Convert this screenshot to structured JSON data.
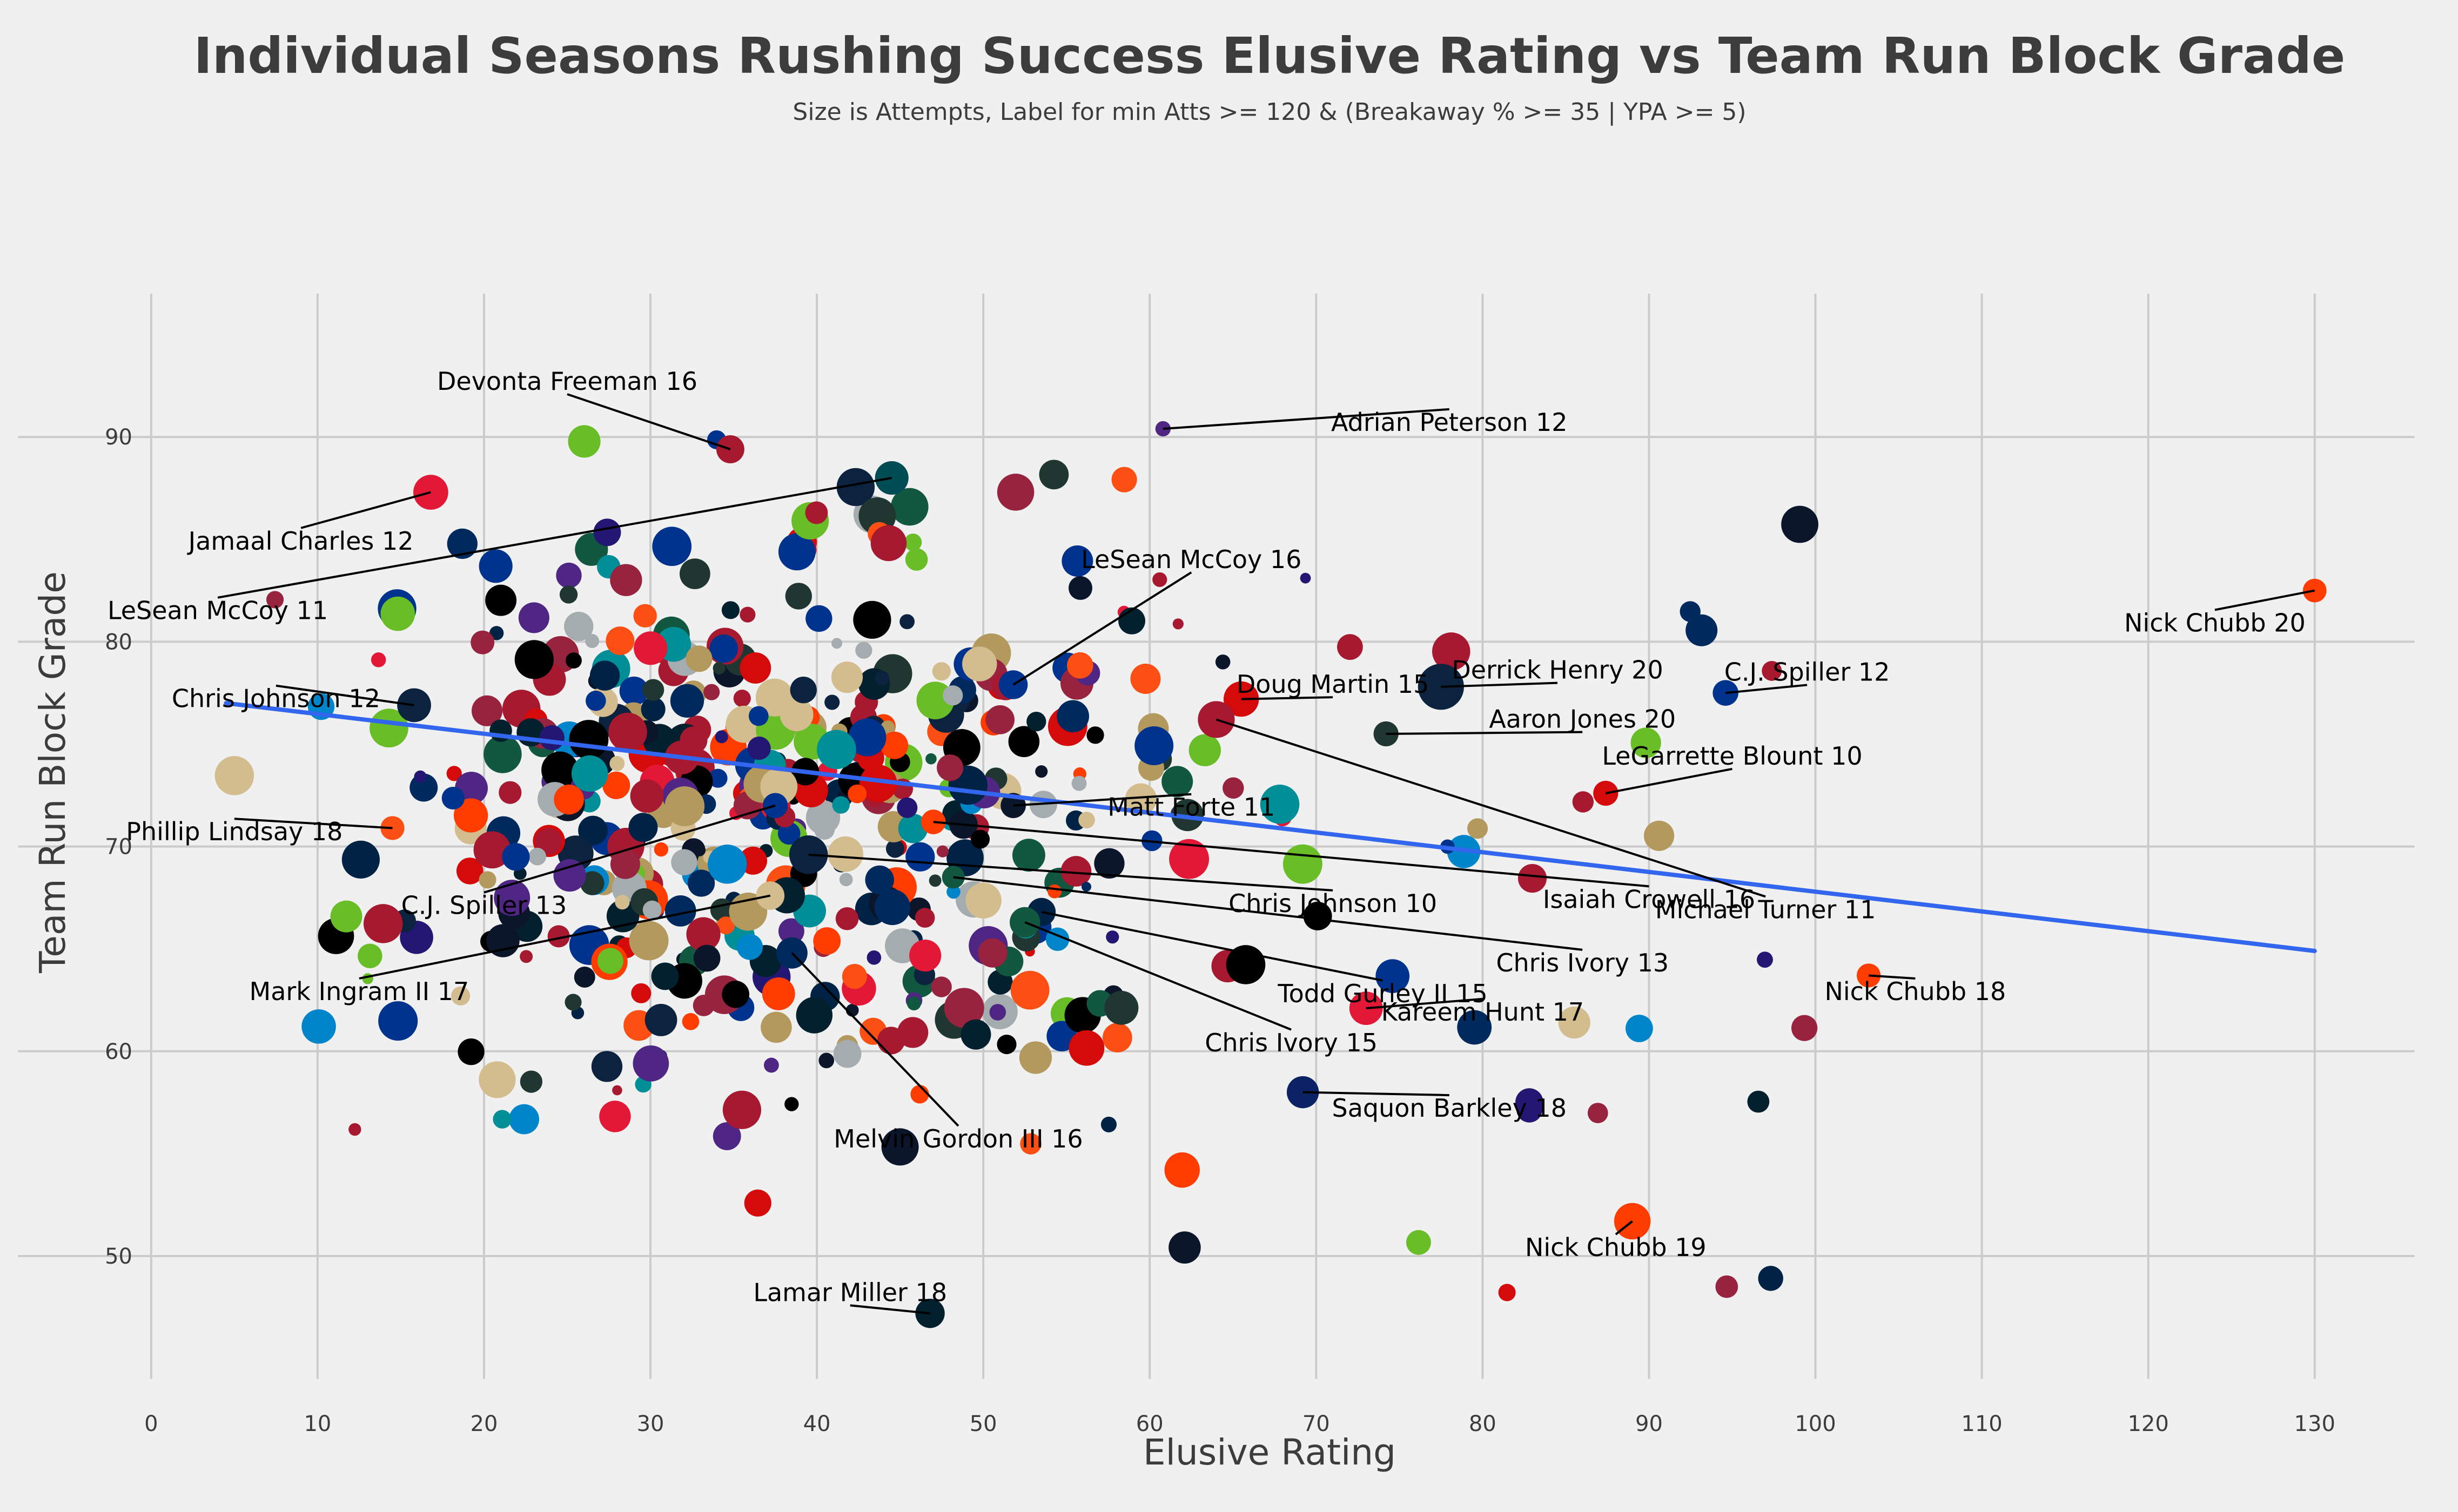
{
  "chart_data": {
    "type": "scatter",
    "title": "Individual Seasons Rushing Success Elusive Rating vs Team Run Block Grade",
    "subtitle": "Size is Attempts, Label for min Atts >= 120 & (Breakaway % >= 35 | YPA >= 5)",
    "xlabel": "Elusive Rating",
    "ylabel": "Team Run Block Grade",
    "xlim": [
      -8,
      136
    ],
    "ylim": [
      44,
      97
    ],
    "xticks": [
      0,
      10,
      20,
      30,
      40,
      50,
      60,
      70,
      80,
      90,
      100,
      110,
      120,
      130
    ],
    "yticks": [
      50,
      60,
      70,
      80,
      90
    ],
    "grid": true,
    "background": "#f0f0f0",
    "trendline": {
      "x": [
        4.5,
        130
      ],
      "y": [
        77.0,
        64.9
      ],
      "color": "#3366ee"
    },
    "labeled_points": [
      {
        "label": "Devonta Freeman 16",
        "x": 34.8,
        "y": 89.4,
        "atts": 227,
        "color": "#a6192e"
      },
      {
        "label": "Adrian Peterson 12",
        "x": 60.8,
        "y": 90.4,
        "atts": 120,
        "color": "#4f2683"
      },
      {
        "label": "Jamaal Charles 12",
        "x": 16.8,
        "y": 87.3,
        "atts": 285,
        "color": "#e31837"
      },
      {
        "label": "LeSean McCoy 16",
        "x": 51.8,
        "y": 77.9,
        "atts": 234,
        "color": "#00338d"
      },
      {
        "label": "LeSean McCoy 11",
        "x": 44.5,
        "y": 88.0,
        "atts": 273,
        "color": "#004c54"
      },
      {
        "label": "Nick Chubb 20",
        "x": 130.0,
        "y": 82.5,
        "atts": 190,
        "color": "#ff3c00"
      },
      {
        "label": "Doug Martin 15",
        "x": 65.5,
        "y": 77.2,
        "atts": 288,
        "color": "#d50a0a"
      },
      {
        "label": "Derrick Henry 20",
        "x": 77.5,
        "y": 77.8,
        "atts": 378,
        "color": "#0c2340"
      },
      {
        "label": "C.J. Spiller 12",
        "x": 94.6,
        "y": 77.5,
        "atts": 207,
        "color": "#00338d"
      },
      {
        "label": "Aaron Jones 20",
        "x": 74.2,
        "y": 75.5,
        "atts": 201,
        "color": "#203731"
      },
      {
        "label": "Chris Johnson 12",
        "x": 15.8,
        "y": 76.9,
        "atts": 276,
        "color": "#0c2340"
      },
      {
        "label": "LeGarrette Blount 10",
        "x": 87.4,
        "y": 72.6,
        "atts": 201,
        "color": "#d50a0a"
      },
      {
        "label": "Matt Forte 11",
        "x": 51.8,
        "y": 72.0,
        "atts": 203,
        "color": "#0b162a"
      },
      {
        "label": "Phillip Lindsay 18",
        "x": 14.5,
        "y": 70.9,
        "atts": 192,
        "color": "#fb4f14"
      },
      {
        "label": "Isaiah Crowell 16",
        "x": 47.0,
        "y": 71.2,
        "atts": 198,
        "color": "#ff3c00"
      },
      {
        "label": "Michael Turner 11",
        "x": 64.0,
        "y": 76.2,
        "atts": 301,
        "color": "#a71930"
      },
      {
        "label": "C.J. Spiller 13",
        "x": 37.5,
        "y": 72.0,
        "atts": 202,
        "color": "#00338d"
      },
      {
        "label": "Chris Johnson 10",
        "x": 39.5,
        "y": 69.6,
        "atts": 316,
        "color": "#0c2340"
      },
      {
        "label": "Chris Ivory 13",
        "x": 48.2,
        "y": 68.5,
        "atts": 182,
        "color": "#125740"
      },
      {
        "label": "Mark Ingram II 17",
        "x": 37.2,
        "y": 67.6,
        "atts": 230,
        "color": "#d3bc8d"
      },
      {
        "label": "Todd Gurley II 15",
        "x": 53.5,
        "y": 66.8,
        "atts": 229,
        "color": "#002244"
      },
      {
        "label": "Kareem Hunt 17",
        "x": 73.0,
        "y": 62.1,
        "atts": 272,
        "color": "#e31837"
      },
      {
        "label": "Nick Chubb 18",
        "x": 103.2,
        "y": 63.7,
        "atts": 192,
        "color": "#ff3c00"
      },
      {
        "label": "Chris Ivory 15",
        "x": 52.5,
        "y": 66.3,
        "atts": 247,
        "color": "#125740"
      },
      {
        "label": "Saquon Barkley 18",
        "x": 69.2,
        "y": 58.0,
        "atts": 261,
        "color": "#0b2265"
      },
      {
        "label": "Melvin Gordon III 16",
        "x": 38.5,
        "y": 64.8,
        "atts": 254,
        "color": "#002a5e"
      },
      {
        "label": "Nick Chubb 19",
        "x": 89.0,
        "y": 51.7,
        "atts": 298,
        "color": "#ff3c00"
      },
      {
        "label": "Lamar Miller 18",
        "x": 46.8,
        "y": 47.2,
        "atts": 238,
        "color": "#03202f"
      }
    ]
  }
}
